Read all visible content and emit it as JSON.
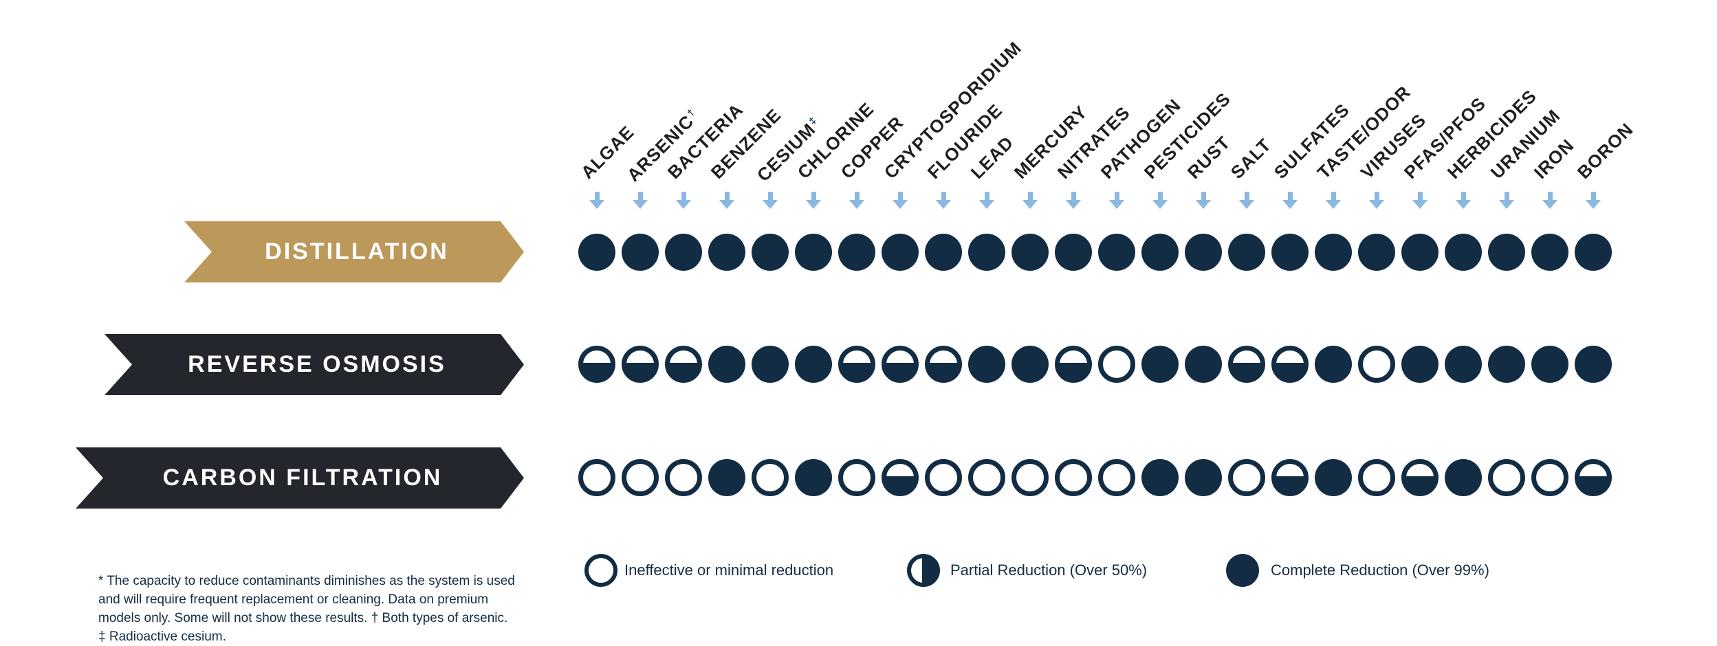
{
  "colors": {
    "navy": "#122c44",
    "gold": "#bc985a",
    "charcoal": "#23262c",
    "arrow_blue": "#8ab8e1",
    "label_dark": "#221e1f",
    "background": "#ffffff"
  },
  "chart_data": {
    "type": "table",
    "title": "",
    "value_scale": [
      "empty = Ineffective or minimal reduction",
      "half = Partial Reduction (Over 50%)",
      "full = Complete Reduction (Over 99%)"
    ],
    "columns": [
      {
        "name": "ALGAE",
        "sup": ""
      },
      {
        "name": "ARSENIC",
        "sup": "†"
      },
      {
        "name": "BACTERIA",
        "sup": ""
      },
      {
        "name": "BENZENE",
        "sup": ""
      },
      {
        "name": "CESIUM",
        "sup": "‡"
      },
      {
        "name": "CHLORINE",
        "sup": ""
      },
      {
        "name": "COPPER",
        "sup": ""
      },
      {
        "name": "CRYPTOSPORIDIUM",
        "sup": ""
      },
      {
        "name": "FLOURIDE",
        "sup": ""
      },
      {
        "name": "LEAD",
        "sup": ""
      },
      {
        "name": "MERCURY",
        "sup": ""
      },
      {
        "name": "NITRATES",
        "sup": ""
      },
      {
        "name": "PATHOGEN",
        "sup": ""
      },
      {
        "name": "PESTICIDES",
        "sup": ""
      },
      {
        "name": "RUST",
        "sup": ""
      },
      {
        "name": "SALT",
        "sup": ""
      },
      {
        "name": "SULFATES",
        "sup": ""
      },
      {
        "name": "TASTE/ODOR",
        "sup": ""
      },
      {
        "name": "VIRUSES",
        "sup": ""
      },
      {
        "name": "PFAS/PFOS",
        "sup": ""
      },
      {
        "name": "HERBICIDES",
        "sup": ""
      },
      {
        "name": "URANIUM",
        "sup": ""
      },
      {
        "name": "IRON",
        "sup": ""
      },
      {
        "name": "BORON",
        "sup": ""
      }
    ],
    "rows": [
      {
        "label": "DISTILLATION",
        "color_key": "gold",
        "values": [
          "full",
          "full",
          "full",
          "full",
          "full",
          "full",
          "full",
          "full",
          "full",
          "full",
          "full",
          "full",
          "full",
          "full",
          "full",
          "full",
          "full",
          "full",
          "full",
          "full",
          "full",
          "full",
          "full",
          "full"
        ]
      },
      {
        "label": "REVERSE OSMOSIS",
        "color_key": "charcoal",
        "values": [
          "half",
          "half",
          "half",
          "full",
          "full",
          "full",
          "half",
          "half",
          "half",
          "full",
          "full",
          "half",
          "empty",
          "full",
          "full",
          "half",
          "half",
          "full",
          "empty",
          "full",
          "full",
          "full",
          "full",
          "full"
        ]
      },
      {
        "label": "CARBON FILTRATION",
        "color_key": "charcoal",
        "values": [
          "empty",
          "empty",
          "empty",
          "full",
          "empty",
          "full",
          "empty",
          "half",
          "empty",
          "empty",
          "empty",
          "empty",
          "empty",
          "full",
          "full",
          "empty",
          "half",
          "full",
          "empty",
          "half",
          "full",
          "empty",
          "empty",
          "half"
        ]
      }
    ],
    "legend": [
      {
        "type": "empty",
        "label": "Ineffective or minimal reduction"
      },
      {
        "type": "partial",
        "label": "Partial Reduction (Over 50%)"
      },
      {
        "type": "full",
        "label": "Complete Reduction (Over 99%)"
      }
    ]
  },
  "footnote": {
    "lines": [
      "* The capacity to reduce contaminants diminishes as the system is used",
      "and will require frequent replacement or cleaning. Data on premium",
      "models only. Some will not show these results.  † Both types of arsenic.",
      "‡ Radioactive cesium."
    ]
  }
}
